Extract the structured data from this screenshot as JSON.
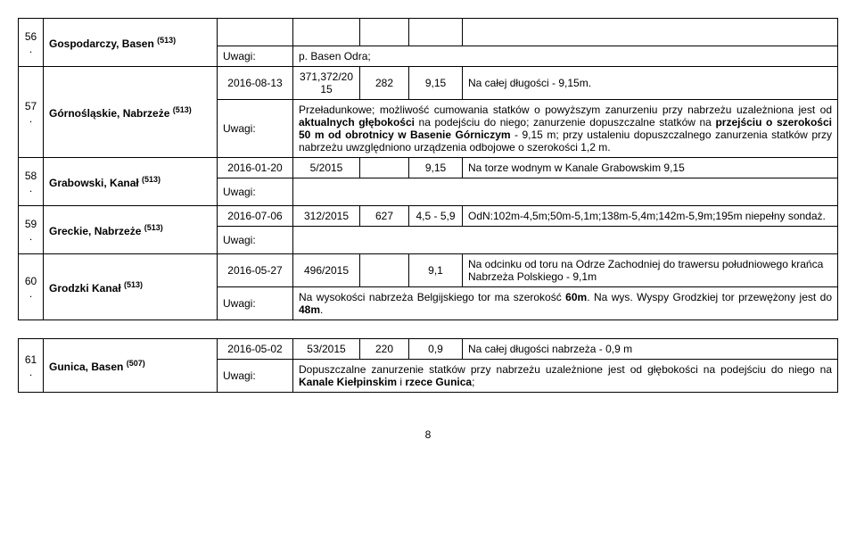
{
  "rows": [
    {
      "num": "56.",
      "name": "Gospodarczy, Basen",
      "ref": "(513)",
      "uwagi_note": "p. Basen Odra;"
    },
    {
      "num": "57.",
      "name": "Górnośląskie, Nabrzeże",
      "ref": "(513)",
      "data1": {
        "date": "2016-08-13",
        "doc": "371,372/2015",
        "v1": "282",
        "v2": "9,15",
        "note": "Na całej długości - 9,15m."
      },
      "uwagi_note_html": "Przeładunkowe; możliwość cumowania statków o powyższym zanurzeniu przy nabrzeżu uzależniona jest od <b>aktualnych głębokości</b> na podejściu do niego; zanurzenie dopuszczalne statków na <b>przejściu o szerokości 50 m od obrotnicy w Basenie Górniczym</b> - 9,15 m; przy ustaleniu dopuszczalnego zanurzenia statków przy nabrzeżu uwzględniono urządzenia odbojowe o szerokości 1,2 m."
    },
    {
      "num": "58.",
      "name": "Grabowski, Kanał",
      "ref": "(513)",
      "data1": {
        "date": "2016-01-20",
        "doc": "5/2015",
        "v1": "",
        "v2": "9,15",
        "note": "Na torze wodnym w Kanale Grabowskim 9,15"
      }
    },
    {
      "num": "59.",
      "name": "Greckie, Nabrzeże",
      "ref": "(513)",
      "data1": {
        "date": "2016-07-06",
        "doc": "312/2015",
        "v1": "627",
        "v2": "4,5 - 5,9",
        "note": "OdN:102m-4,5m;50m-5,1m;138m-5,4m;142m-5,9m;195m niepełny sondaż."
      }
    },
    {
      "num": "60.",
      "name": "Grodzki Kanał",
      "ref": "(513)",
      "data1": {
        "date": "2016-05-27",
        "doc": "496/2015",
        "v1": "",
        "v2": "9,1",
        "note": "Na odcinku od toru na Odrze Zachodniej do trawersu południowego krańca Nabrzeża Polskiego - 9,1m"
      },
      "uwagi_note_html": "Na wysokości nabrzeża Belgijskiego tor ma szerokość <b>60m</b>. Na wys. Wyspy Grodzkiej tor przewężony jest do <b>48m</b>."
    },
    {
      "num": "61.",
      "name": "Gunica, Basen",
      "ref": "(507)",
      "data1": {
        "date": "2016-05-02",
        "doc": "53/2015",
        "v1": "220",
        "v2": "0,9",
        "note": "Na całej długości nabrzeża - 0,9 m"
      },
      "uwagi_note_html": "Dopuszczalne zanurzenie statków przy nabrzeżu uzależnione jest od głębokości na podejściu do niego na <b>Kanale Kiełpinskim</b> i <b>rzece Gunica</b>;"
    }
  ],
  "labels": {
    "uwagi": "Uwagi:"
  },
  "page": "8"
}
